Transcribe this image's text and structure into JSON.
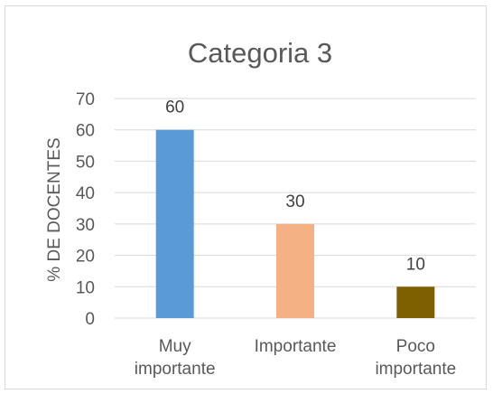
{
  "chart_data": {
    "type": "bar",
    "title": "Categoria 3",
    "xlabel": "",
    "ylabel": "% DE DOCENTES",
    "categories": [
      [
        "Muy",
        "importante"
      ],
      [
        "Importante"
      ],
      [
        "Poco",
        "importante"
      ]
    ],
    "values": [
      60,
      30,
      10
    ],
    "bar_colors": [
      "#5b9bd5",
      "#f4b183",
      "#7f6000"
    ],
    "ylim": [
      0,
      70
    ],
    "yticks": [
      0,
      10,
      20,
      30,
      40,
      50,
      60,
      70
    ],
    "grid": true,
    "data_labels": true,
    "gridline_color": "#d9d9d9"
  }
}
